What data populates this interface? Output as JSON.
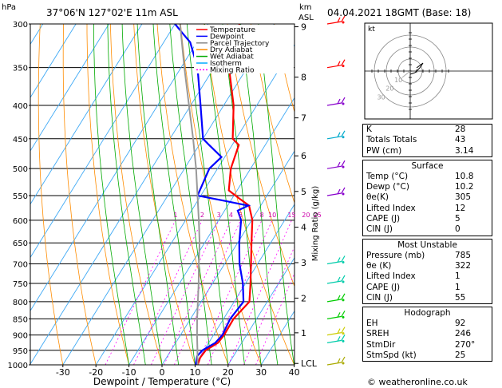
{
  "header": {
    "hpa_label": "hPa",
    "location": "37°06'N  127°02'E  11m  ASL",
    "km_label": "km",
    "asl_label": "ASL",
    "date": "04.04.2021  18GMT  (Base: 18)"
  },
  "legend": [
    {
      "label": "Temperature",
      "color": "#ff0000"
    },
    {
      "label": "Dewpoint",
      "color": "#0000ff"
    },
    {
      "label": "Parcel Trajectory",
      "color": "#888888"
    },
    {
      "label": "Dry Adiabat",
      "color": "#ff8c00"
    },
    {
      "label": "Wet Adiabat",
      "color": "#00aa00"
    },
    {
      "label": "Isotherm",
      "color": "#00aaff"
    },
    {
      "label": "Mixing Ratio",
      "color": "#ff00ff"
    }
  ],
  "chart_data": {
    "type": "skew-t",
    "xlabel": "Dewpoint / Temperature (°C)",
    "ylabel_left": "hPa",
    "ylabel_right": "Mixing Ratio (g/kg)",
    "pressure_levels": [
      300,
      350,
      400,
      450,
      500,
      550,
      600,
      650,
      700,
      750,
      800,
      850,
      900,
      950,
      1000
    ],
    "temperature_ticks": [
      -30,
      -20,
      -10,
      0,
      10,
      20,
      30,
      40
    ],
    "km_ticks": [
      {
        "label": "9",
        "p": 303
      },
      {
        "label": "8",
        "p": 362
      },
      {
        "label": "7",
        "p": 418
      },
      {
        "label": "6",
        "p": 478
      },
      {
        "label": "5",
        "p": 542
      },
      {
        "label": "4",
        "p": 615
      },
      {
        "label": "3",
        "p": 697
      },
      {
        "label": "2",
        "p": 790
      },
      {
        "label": "1",
        "p": 893
      },
      {
        "label": "LCL",
        "p": 995
      }
    ],
    "mixing_ratio_labels": [
      1,
      2,
      3,
      4,
      5,
      8,
      10,
      15,
      20,
      25
    ],
    "series": [
      {
        "name": "Temperature",
        "color": "#ff0000",
        "points": [
          [
            1000,
            10.8
          ],
          [
            975,
            10.2
          ],
          [
            950,
            10.5
          ],
          [
            925,
            12.8
          ],
          [
            900,
            13.2
          ],
          [
            850,
            13.0
          ],
          [
            800,
            14.6
          ],
          [
            750,
            11.5
          ],
          [
            700,
            8.0
          ],
          [
            650,
            4.2
          ],
          [
            600,
            0.2
          ],
          [
            570,
            -3.5
          ],
          [
            555,
            -8.0
          ],
          [
            540,
            -12.5
          ],
          [
            500,
            -16.0
          ],
          [
            460,
            -18.0
          ],
          [
            450,
            -21.0
          ],
          [
            400,
            -27.0
          ],
          [
            350,
            -35.5
          ],
          [
            320,
            -41.0
          ],
          [
            310,
            -39.5
          ],
          [
            300,
            -40.5
          ]
        ]
      },
      {
        "name": "Dewpoint",
        "color": "#0000ff",
        "points": [
          [
            1000,
            10.2
          ],
          [
            970,
            9.0
          ],
          [
            950,
            9.5
          ],
          [
            925,
            12.0
          ],
          [
            900,
            12.7
          ],
          [
            850,
            12.0
          ],
          [
            800,
            12.8
          ],
          [
            750,
            9.2
          ],
          [
            700,
            4.5
          ],
          [
            650,
            0.5
          ],
          [
            600,
            -3.2
          ],
          [
            580,
            -6.0
          ],
          [
            570,
            -3.8
          ],
          [
            560,
            -12.0
          ],
          [
            550,
            -21.0
          ],
          [
            500,
            -22.5
          ],
          [
            480,
            -21.0
          ],
          [
            460,
            -27.0
          ],
          [
            450,
            -30.0
          ],
          [
            400,
            -37.0
          ],
          [
            350,
            -45.0
          ],
          [
            320,
            -52.0
          ],
          [
            310,
            -56.0
          ],
          [
            300,
            -60.0
          ]
        ]
      },
      {
        "name": "Parcel Trajectory",
        "color": "#999999",
        "points": [
          [
            1000,
            10.8
          ],
          [
            990,
            10.2
          ],
          [
            950,
            8.0
          ],
          [
            900,
            5.0
          ],
          [
            850,
            2.0
          ],
          [
            800,
            -1.0
          ],
          [
            750,
            -4.2
          ],
          [
            700,
            -7.8
          ],
          [
            650,
            -11.5
          ],
          [
            600,
            -16.0
          ],
          [
            550,
            -21.0
          ],
          [
            500,
            -26.5
          ],
          [
            450,
            -33.0
          ],
          [
            400,
            -40.5
          ],
          [
            350,
            -49.0
          ],
          [
            300,
            -58.5
          ]
        ]
      }
    ]
  },
  "winds": [
    {
      "p": 1000,
      "color": "#aaaa00"
    },
    {
      "p": 925,
      "color": "#00ccaa"
    },
    {
      "p": 900,
      "color": "#cccc00"
    },
    {
      "p": 850,
      "color": "#00cc00"
    },
    {
      "p": 800,
      "color": "#00cc00"
    },
    {
      "p": 750,
      "color": "#00ccaa"
    },
    {
      "p": 700,
      "color": "#00ccaa"
    },
    {
      "p": 550,
      "color": "#8800cc"
    },
    {
      "p": 500,
      "color": "#8800cc"
    },
    {
      "p": 450,
      "color": "#00aacc"
    },
    {
      "p": 400,
      "color": "#8800cc"
    },
    {
      "p": 350,
      "color": "#ff0000"
    },
    {
      "p": 300,
      "color": "#ff0000"
    }
  ],
  "hodograph": {
    "label": "kt",
    "ring_labels": [
      "10",
      "20",
      "30"
    ]
  },
  "indices": [
    {
      "label": "K",
      "value": "28"
    },
    {
      "label": "Totals Totals",
      "value": "43"
    },
    {
      "label": "PW (cm)",
      "value": "3.14"
    }
  ],
  "surface": {
    "title": "Surface",
    "rows": [
      {
        "label": "Temp (°C)",
        "value": "10.8"
      },
      {
        "label": "Dewp (°C)",
        "value": "10.2"
      },
      {
        "label": "θe(K)",
        "value": "305"
      },
      {
        "label": "Lifted Index",
        "value": "12"
      },
      {
        "label": "CAPE (J)",
        "value": "5"
      },
      {
        "label": "CIN (J)",
        "value": "0"
      }
    ]
  },
  "most_unstable": {
    "title": "Most Unstable",
    "rows": [
      {
        "label": "Pressure (mb)",
        "value": "785"
      },
      {
        "label": "θe (K)",
        "value": "322"
      },
      {
        "label": "Lifted Index",
        "value": "1"
      },
      {
        "label": "CAPE (J)",
        "value": "1"
      },
      {
        "label": "CIN (J)",
        "value": "55"
      }
    ]
  },
  "hodograph_stats": {
    "title": "Hodograph",
    "rows": [
      {
        "label": "EH",
        "value": "92"
      },
      {
        "label": "SREH",
        "value": "246"
      },
      {
        "label": "StmDir",
        "value": "270°"
      },
      {
        "label": "StmSpd (kt)",
        "value": "25"
      }
    ]
  },
  "copyright": "© weatheronline.co.uk"
}
